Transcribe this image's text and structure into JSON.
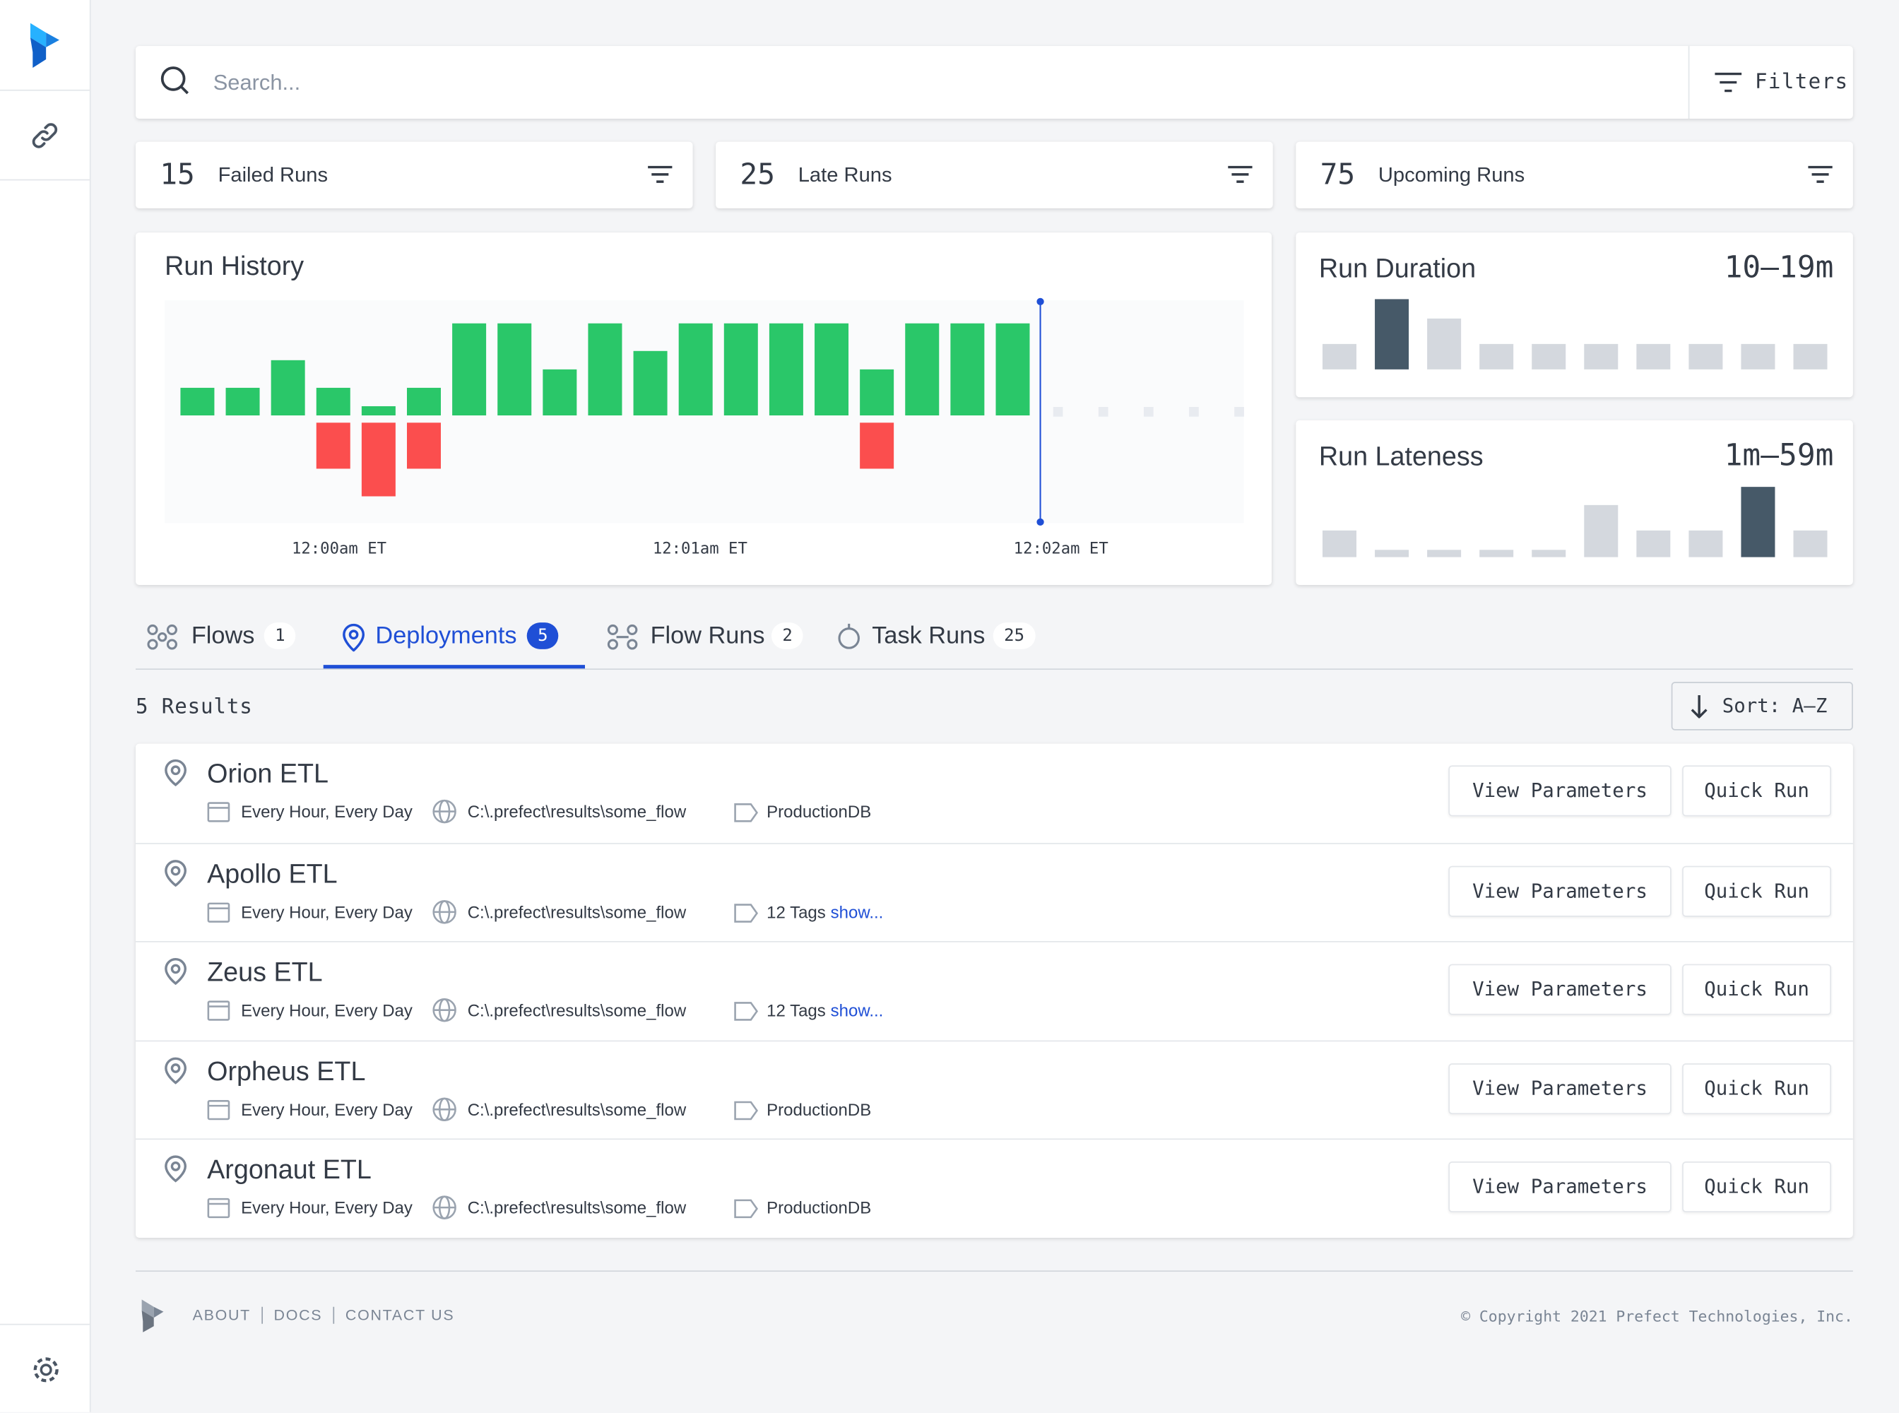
{
  "search": {
    "placeholder": "Search...",
    "filters": "Filters"
  },
  "stats": [
    {
      "count": 15,
      "label": "Failed Runs"
    },
    {
      "count": 25,
      "label": "Late Runs"
    },
    {
      "count": 75,
      "label": "Upcoming Runs"
    }
  ],
  "run_history": {
    "title": "Run History",
    "success_color": "#2ac769",
    "failed_color": "#fb4e4e",
    "success": [
      3,
      3,
      6,
      3,
      1,
      3,
      10,
      10,
      5,
      10,
      7,
      10,
      10,
      10,
      10,
      5,
      10,
      10,
      10,
      null,
      null,
      null,
      null,
      null
    ],
    "failed": [
      null,
      null,
      null,
      5,
      8,
      5,
      null,
      null,
      null,
      null,
      null,
      null,
      null,
      null,
      null,
      5,
      null,
      null,
      null,
      null,
      null,
      null,
      null,
      null
    ],
    "x_labels": [
      "12:00am ET",
      "12:01am ET",
      "12:02am ET"
    ]
  },
  "run_duration": {
    "title": "Run Duration",
    "value": "10–19m",
    "bars": [
      21,
      58,
      42,
      21,
      21,
      21,
      21,
      21,
      21,
      21
    ],
    "highlight": 1
  },
  "run_lateness": {
    "title": "Run Lateness",
    "value": "1m–59m",
    "bars": [
      22,
      6,
      6,
      6,
      6,
      43,
      22,
      22,
      58,
      22
    ],
    "highlight": 8
  },
  "tabs": [
    {
      "label": "Flows",
      "count": 1
    },
    {
      "label": "Deployments",
      "count": 5
    },
    {
      "label": "Flow Runs",
      "count": 2
    },
    {
      "label": "Task Runs",
      "count": 25
    }
  ],
  "active_tab": 1,
  "results": "5 Results",
  "sort": "Sort: A–Z",
  "buttons": [
    "View Parameters",
    "Quick Run"
  ],
  "deployments": [
    {
      "name": "Orion ETL",
      "schedule": "Every Hour, Every Day",
      "path": "C:\\.prefect\\results\\some_flow",
      "tags": "ProductionDB"
    },
    {
      "name": "Apollo ETL",
      "schedule": "Every Hour, Every Day",
      "path": "C:\\.prefect\\results\\some_flow",
      "tags": "12 Tags",
      "more": "show..."
    },
    {
      "name": "Zeus ETL",
      "schedule": "Every Hour, Every Day",
      "path": "C:\\.prefect\\results\\some_flow",
      "tags": "12 Tags",
      "more": "show..."
    },
    {
      "name": "Orpheus ETL",
      "schedule": "Every Hour, Every Day",
      "path": "C:\\.prefect\\results\\some_flow",
      "tags": "ProductionDB"
    },
    {
      "name": "Argonaut ETL",
      "schedule": "Every Hour, Every Day",
      "path": "C:\\.prefect\\results\\some_flow",
      "tags": "ProductionDB"
    }
  ],
  "footer": {
    "links": [
      "ABOUT",
      "DOCS",
      "CONTACT US"
    ],
    "copyright": "© Copyright 2021 Prefect Technologies, Inc."
  }
}
